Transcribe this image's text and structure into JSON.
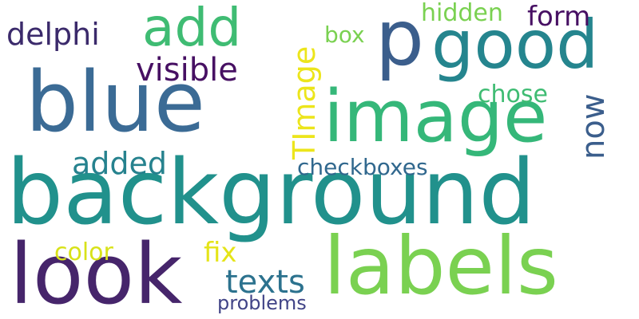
{
  "words": {
    "background": {
      "text": "background",
      "color": "#21918c"
    },
    "blue": {
      "text": "blue",
      "color": "#3b6b95"
    },
    "look": {
      "text": "look",
      "color": "#46256b"
    },
    "labels": {
      "text": "labels",
      "color": "#7ad151"
    },
    "image": {
      "text": "image",
      "color": "#35b779"
    },
    "good": {
      "text": "good",
      "color": "#25858e"
    },
    "p": {
      "text": "p",
      "color": "#3b5e8c"
    },
    "add": {
      "text": "add",
      "color": "#3fbc73"
    },
    "delphi": {
      "text": "delphi",
      "color": "#3b2a6b"
    },
    "visible": {
      "text": "visible",
      "color": "#471063"
    },
    "hidden": {
      "text": "hidden",
      "color": "#7ad151"
    },
    "form": {
      "text": "form",
      "color": "#471063"
    },
    "box": {
      "text": "box",
      "color": "#7ad151"
    },
    "TImage": {
      "text": "TImage",
      "color": "#ece51b"
    },
    "chose": {
      "text": "chose",
      "color": "#3fbc73"
    },
    "now": {
      "text": "now",
      "color": "#3b5e8c"
    },
    "added": {
      "text": "added",
      "color": "#26828e"
    },
    "checkboxes": {
      "text": "checkboxes",
      "color": "#31688e"
    },
    "color": {
      "text": "color",
      "color": "#d8e219"
    },
    "fix": {
      "text": "fix",
      "color": "#e5e419"
    },
    "texts": {
      "text": "texts",
      "color": "#2c728e"
    },
    "problems": {
      "text": "problems",
      "color": "#414487"
    }
  }
}
